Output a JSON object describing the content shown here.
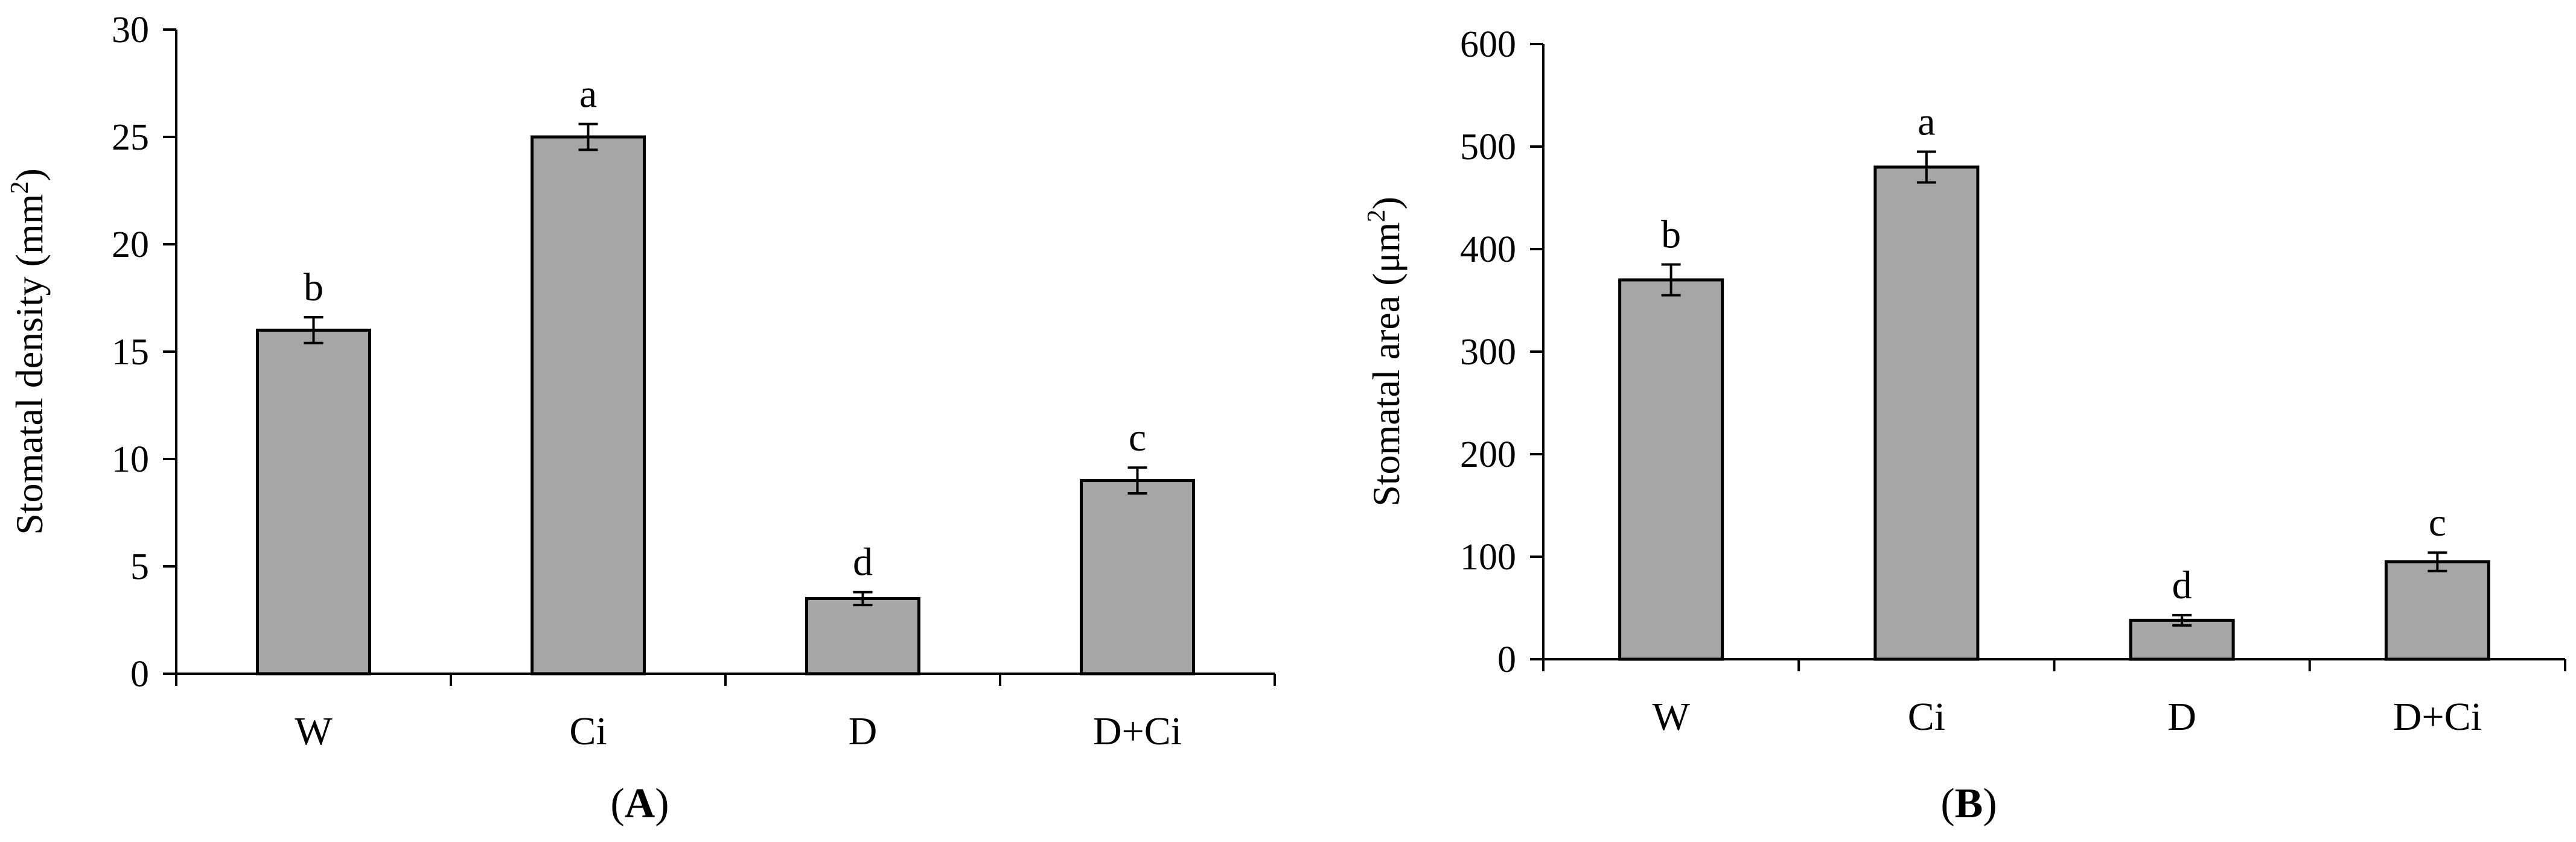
{
  "chart_data": [
    {
      "type": "bar",
      "panel_label": {
        "open": "(",
        "letter": "A",
        "close": ")"
      },
      "title": "",
      "xlabel": "",
      "ylabel": {
        "text": "Stomatal density (mm",
        "sup": "2",
        "close": ")"
      },
      "categories": [
        "W",
        "Ci",
        "D",
        "D+Ci"
      ],
      "values": [
        16,
        25,
        3.5,
        9
      ],
      "errors": [
        0.6,
        0.6,
        0.3,
        0.6
      ],
      "significance": [
        "b",
        "a",
        "d",
        "c"
      ],
      "ylim": [
        0,
        30
      ],
      "yticks": [
        0,
        5,
        10,
        15,
        20,
        25,
        30
      ],
      "grid": false,
      "bar_color": "#a6a6a6"
    },
    {
      "type": "bar",
      "panel_label": {
        "open": "(",
        "letter": "B",
        "close": ")"
      },
      "title": "",
      "xlabel": "",
      "ylabel": {
        "text": "Stomatal area (μm",
        "sup": "2",
        "close": ")"
      },
      "categories": [
        "W",
        "Ci",
        "D",
        "D+Ci"
      ],
      "values": [
        370,
        480,
        38,
        95
      ],
      "errors": [
        15,
        15,
        5,
        9
      ],
      "significance": [
        "b",
        "a",
        "d",
        "c"
      ],
      "ylim": [
        0,
        600
      ],
      "yticks": [
        0,
        100,
        200,
        300,
        400,
        500,
        600
      ],
      "grid": false,
      "bar_color": "#a6a6a6"
    }
  ]
}
